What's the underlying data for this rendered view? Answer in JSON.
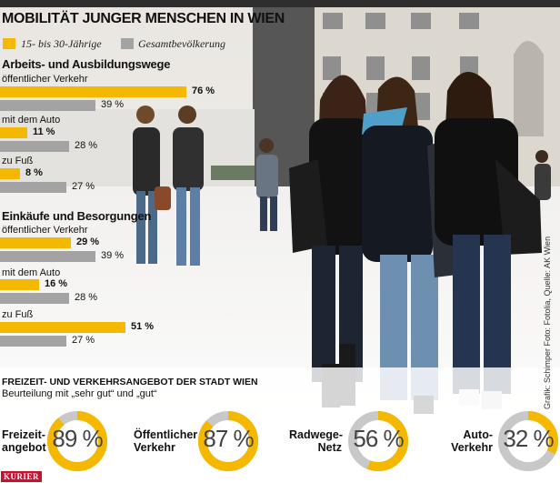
{
  "header": {
    "title": "MOBILITÄT JUNGER MENSCHEN IN WIEN"
  },
  "colors": {
    "young": "#f5b800",
    "total": "#a3a3a3",
    "ring_track": "#c8c8c8",
    "ring_fill": "#f5b800"
  },
  "legend": {
    "young_label": "15- bis 30-Jährige",
    "total_label": "Gesamtbevölkerung"
  },
  "chart_data": [
    {
      "type": "bar",
      "title": "Arbeits- und Ausbildungswege",
      "categories": [
        "öffentlicher Verkehr",
        "mit dem Auto",
        "zu Fuß"
      ],
      "series": [
        {
          "name": "15- bis 30-Jährige",
          "values": [
            76,
            11,
            8
          ]
        },
        {
          "name": "Gesamtbevölkerung",
          "values": [
            39,
            28,
            27
          ]
        }
      ],
      "value_labels": [
        [
          "76 %",
          "11 %",
          "8 %"
        ],
        [
          "39 %",
          "28 %",
          "27 %"
        ]
      ],
      "ylim": [
        0,
        100
      ]
    },
    {
      "type": "bar",
      "title": "Einkäufe und Besorgungen",
      "categories": [
        "öffentlicher Verkehr",
        "mit dem Auto",
        "zu Fuß"
      ],
      "series": [
        {
          "name": "15- bis 30-Jährige",
          "values": [
            29,
            16,
            51
          ]
        },
        {
          "name": "Gesamtbevölkerung",
          "values": [
            39,
            28,
            27
          ]
        }
      ],
      "value_labels": [
        [
          "29 %",
          "16 %",
          "51 %"
        ],
        [
          "39 %",
          "28 %",
          "27 %"
        ]
      ],
      "ylim": [
        0,
        100
      ]
    },
    {
      "type": "pie",
      "title": "FREIZEIT- UND VERKEHRSANGEBOT DER STADT WIEN",
      "subtitle": "Beurteilung mit „sehr gut“ und „gut“",
      "categories": [
        "Freizeit-\nangebot",
        "Öffentlicher\nVerkehr",
        "Radwege-\nNetz",
        "Auto-\nVerkehr"
      ],
      "values": [
        89,
        87,
        56,
        32
      ],
      "value_labels": [
        "89 %",
        "87 %",
        "56 %",
        "32 %"
      ]
    }
  ],
  "credit": "Grafik: Schimper   Foto: Fotolia, Quelle: AK Wien",
  "brand": "KURIER"
}
